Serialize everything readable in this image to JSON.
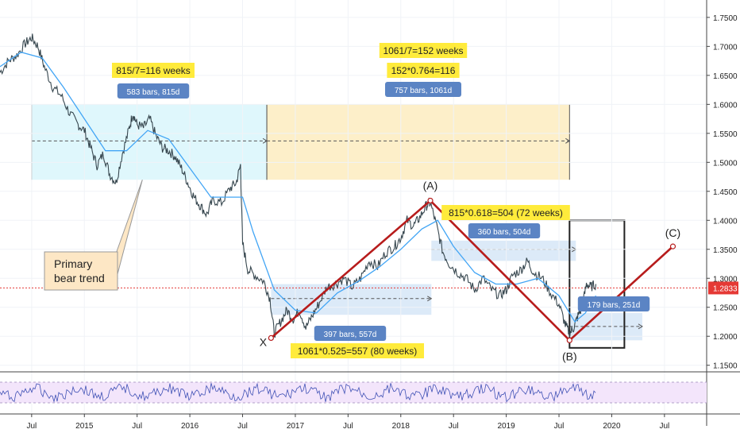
{
  "chart_data": {
    "type": "line",
    "instrument_note": "",
    "price_axis": {
      "ticks": [
        "1.7500",
        "1.7000",
        "1.6500",
        "1.6000",
        "1.5500",
        "1.5000",
        "1.4500",
        "1.4000",
        "1.3500",
        "1.3000",
        "1.2500",
        "1.2000",
        "1.1500"
      ],
      "tick_values": [
        1.75,
        1.7,
        1.65,
        1.6,
        1.55,
        1.5,
        1.45,
        1.4,
        1.35,
        1.3,
        1.25,
        1.2,
        1.15
      ],
      "ylim": [
        1.14,
        1.78
      ],
      "last_price": "1.2833",
      "last_price_value": 1.2833,
      "last_price_color": "#e53935"
    },
    "time_axis": {
      "labels": [
        "Jul",
        "2015",
        "Jul",
        "2016",
        "Jul",
        "2017",
        "Jul",
        "2018",
        "Jul",
        "2019",
        "Jul",
        "2020",
        "Jul"
      ],
      "label_years": [
        2014.5,
        2015.0,
        2015.5,
        2016.0,
        2016.5,
        2017.0,
        2017.5,
        2018.0,
        2018.5,
        2019.0,
        2019.5,
        2020.0,
        2020.5
      ],
      "xlim": [
        2014.2,
        2020.9
      ]
    },
    "price_series": [
      {
        "x": 2014.2,
        "y": 1.655
      },
      {
        "x": 2014.28,
        "y": 1.675
      },
      {
        "x": 2014.36,
        "y": 1.685
      },
      {
        "x": 2014.44,
        "y": 1.705
      },
      {
        "x": 2014.5,
        "y": 1.715
      },
      {
        "x": 2014.56,
        "y": 1.7
      },
      {
        "x": 2014.62,
        "y": 1.665
      },
      {
        "x": 2014.7,
        "y": 1.63
      },
      {
        "x": 2014.78,
        "y": 1.615
      },
      {
        "x": 2014.86,
        "y": 1.585
      },
      {
        "x": 2014.94,
        "y": 1.565
      },
      {
        "x": 2015.0,
        "y": 1.555
      },
      {
        "x": 2015.06,
        "y": 1.525
      },
      {
        "x": 2015.12,
        "y": 1.495
      },
      {
        "x": 2015.18,
        "y": 1.515
      },
      {
        "x": 2015.24,
        "y": 1.48
      },
      {
        "x": 2015.3,
        "y": 1.465
      },
      {
        "x": 2015.36,
        "y": 1.515
      },
      {
        "x": 2015.42,
        "y": 1.555
      },
      {
        "x": 2015.46,
        "y": 1.585
      },
      {
        "x": 2015.5,
        "y": 1.565
      },
      {
        "x": 2015.56,
        "y": 1.56
      },
      {
        "x": 2015.62,
        "y": 1.575
      },
      {
        "x": 2015.68,
        "y": 1.545
      },
      {
        "x": 2015.74,
        "y": 1.525
      },
      {
        "x": 2015.8,
        "y": 1.52
      },
      {
        "x": 2015.86,
        "y": 1.51
      },
      {
        "x": 2015.92,
        "y": 1.49
      },
      {
        "x": 2015.98,
        "y": 1.465
      },
      {
        "x": 2016.04,
        "y": 1.44
      },
      {
        "x": 2016.1,
        "y": 1.425
      },
      {
        "x": 2016.16,
        "y": 1.41
      },
      {
        "x": 2016.22,
        "y": 1.435
      },
      {
        "x": 2016.3,
        "y": 1.43
      },
      {
        "x": 2016.38,
        "y": 1.455
      },
      {
        "x": 2016.44,
        "y": 1.465
      },
      {
        "x": 2016.48,
        "y": 1.495
      },
      {
        "x": 2016.5,
        "y": 1.36
      },
      {
        "x": 2016.55,
        "y": 1.315
      },
      {
        "x": 2016.62,
        "y": 1.305
      },
      {
        "x": 2016.7,
        "y": 1.295
      },
      {
        "x": 2016.76,
        "y": 1.265
      },
      {
        "x": 2016.8,
        "y": 1.205
      },
      {
        "x": 2016.86,
        "y": 1.225
      },
      {
        "x": 2016.92,
        "y": 1.245
      },
      {
        "x": 2016.98,
        "y": 1.23
      },
      {
        "x": 2017.04,
        "y": 1.245
      },
      {
        "x": 2017.1,
        "y": 1.215
      },
      {
        "x": 2017.16,
        "y": 1.235
      },
      {
        "x": 2017.22,
        "y": 1.255
      },
      {
        "x": 2017.3,
        "y": 1.285
      },
      {
        "x": 2017.38,
        "y": 1.29
      },
      {
        "x": 2017.46,
        "y": 1.3
      },
      {
        "x": 2017.54,
        "y": 1.285
      },
      {
        "x": 2017.62,
        "y": 1.3
      },
      {
        "x": 2017.7,
        "y": 1.33
      },
      {
        "x": 2017.78,
        "y": 1.32
      },
      {
        "x": 2017.86,
        "y": 1.345
      },
      {
        "x": 2017.94,
        "y": 1.355
      },
      {
        "x": 2018.0,
        "y": 1.37
      },
      {
        "x": 2018.06,
        "y": 1.4
      },
      {
        "x": 2018.12,
        "y": 1.39
      },
      {
        "x": 2018.18,
        "y": 1.405
      },
      {
        "x": 2018.24,
        "y": 1.425
      },
      {
        "x": 2018.28,
        "y": 1.43
      },
      {
        "x": 2018.34,
        "y": 1.39
      },
      {
        "x": 2018.4,
        "y": 1.345
      },
      {
        "x": 2018.46,
        "y": 1.325
      },
      {
        "x": 2018.54,
        "y": 1.31
      },
      {
        "x": 2018.62,
        "y": 1.3
      },
      {
        "x": 2018.7,
        "y": 1.28
      },
      {
        "x": 2018.78,
        "y": 1.3
      },
      {
        "x": 2018.86,
        "y": 1.28
      },
      {
        "x": 2018.94,
        "y": 1.27
      },
      {
        "x": 2019.0,
        "y": 1.28
      },
      {
        "x": 2019.06,
        "y": 1.305
      },
      {
        "x": 2019.14,
        "y": 1.315
      },
      {
        "x": 2019.2,
        "y": 1.33
      },
      {
        "x": 2019.26,
        "y": 1.31
      },
      {
        "x": 2019.34,
        "y": 1.3
      },
      {
        "x": 2019.42,
        "y": 1.275
      },
      {
        "x": 2019.5,
        "y": 1.255
      },
      {
        "x": 2019.56,
        "y": 1.22
      },
      {
        "x": 2019.6,
        "y": 1.205
      },
      {
        "x": 2019.64,
        "y": 1.215
      },
      {
        "x": 2019.68,
        "y": 1.235
      },
      {
        "x": 2019.72,
        "y": 1.25
      },
      {
        "x": 2019.76,
        "y": 1.29
      },
      {
        "x": 2019.8,
        "y": 1.285
      },
      {
        "x": 2019.85,
        "y": 1.29
      }
    ],
    "moving_average": [
      {
        "x": 2014.2,
        "y": 1.665
      },
      {
        "x": 2014.4,
        "y": 1.69
      },
      {
        "x": 2014.6,
        "y": 1.68
      },
      {
        "x": 2014.8,
        "y": 1.63
      },
      {
        "x": 2015.0,
        "y": 1.575
      },
      {
        "x": 2015.2,
        "y": 1.52
      },
      {
        "x": 2015.4,
        "y": 1.52
      },
      {
        "x": 2015.6,
        "y": 1.555
      },
      {
        "x": 2015.8,
        "y": 1.54
      },
      {
        "x": 2016.0,
        "y": 1.49
      },
      {
        "x": 2016.2,
        "y": 1.44
      },
      {
        "x": 2016.4,
        "y": 1.44
      },
      {
        "x": 2016.5,
        "y": 1.44
      },
      {
        "x": 2016.6,
        "y": 1.38
      },
      {
        "x": 2016.8,
        "y": 1.28
      },
      {
        "x": 2017.0,
        "y": 1.245
      },
      {
        "x": 2017.2,
        "y": 1.24
      },
      {
        "x": 2017.4,
        "y": 1.275
      },
      {
        "x": 2017.6,
        "y": 1.295
      },
      {
        "x": 2017.8,
        "y": 1.32
      },
      {
        "x": 2018.0,
        "y": 1.35
      },
      {
        "x": 2018.2,
        "y": 1.385
      },
      {
        "x": 2018.35,
        "y": 1.4
      },
      {
        "x": 2018.5,
        "y": 1.355
      },
      {
        "x": 2018.7,
        "y": 1.31
      },
      {
        "x": 2018.9,
        "y": 1.29
      },
      {
        "x": 2019.1,
        "y": 1.29
      },
      {
        "x": 2019.3,
        "y": 1.3
      },
      {
        "x": 2019.5,
        "y": 1.27
      },
      {
        "x": 2019.65,
        "y": 1.225
      },
      {
        "x": 2019.75,
        "y": 1.24
      },
      {
        "x": 2019.85,
        "y": 1.27
      }
    ],
    "elliott_waves": [
      {
        "label": "X",
        "x": 2016.77,
        "y": 1.197
      },
      {
        "label": "(A)",
        "x": 2018.28,
        "y": 1.434
      },
      {
        "label": "(B)",
        "x": 2019.6,
        "y": 1.193
      },
      {
        "label": "(C)",
        "x": 2020.58,
        "y": 1.355
      }
    ],
    "ranges": [
      {
        "kind": "cyan",
        "x0": 2014.5,
        "x1": 2016.73,
        "y0": 1.47,
        "y1": 1.6,
        "mid": 1.537,
        "stat": "583 bars, 815d",
        "ratio": [
          "815/7=116 weeks"
        ]
      },
      {
        "kind": "orange",
        "x0": 2016.73,
        "x1": 2019.6,
        "y0": 1.47,
        "y1": 1.6,
        "mid": 1.537,
        "stat": "757 bars, 1061d",
        "ratio": [
          "1061/7=152 weeks",
          "152*0.764=116"
        ]
      },
      {
        "kind": "blue",
        "x0": 2016.77,
        "x1": 2018.29,
        "y0": 1.237,
        "y1": 1.29,
        "mid": 1.265,
        "stat": "397 bars, 557d",
        "ratio": [
          "1061*0.525=557 (80 weeks)"
        ]
      },
      {
        "kind": "blue",
        "x0": 2018.29,
        "x1": 2019.66,
        "y0": 1.33,
        "y1": 1.365,
        "mid": 1.35,
        "stat": "360 bars, 504d",
        "ratio": [
          "815*0.618=504 (72 weeks)"
        ]
      },
      {
        "kind": "blue",
        "x0": 2019.6,
        "x1": 2020.29,
        "y0": 1.193,
        "y1": 1.24,
        "mid": 1.217,
        "stat": "179 bars, 251d",
        "ratio": []
      }
    ],
    "target_box": {
      "x0": 2019.6,
      "x1": 2020.12,
      "y0": 1.18,
      "y1": 1.4
    },
    "annotation": {
      "text": [
        "Primary",
        "bear trend"
      ],
      "pointer_x": 2015.55,
      "pointer_y": 1.47
    },
    "oscillator": {
      "band_color": "#f3e5fb",
      "line_color": "#3f51b5"
    },
    "colors": {
      "price": "#37474f",
      "ma": "#42a5f5",
      "wave": "#b71c1c",
      "stat_box": "#5b84c4",
      "ratio_box": "#ffeb3b",
      "cyan": "#d9f6fb",
      "orange": "#fdecc0",
      "blue": "#d6e6f7"
    }
  }
}
